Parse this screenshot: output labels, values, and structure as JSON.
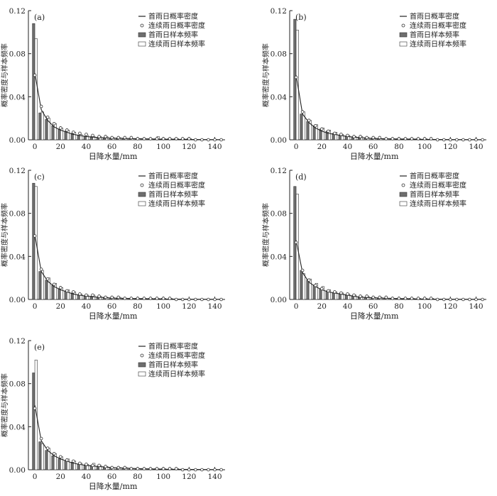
{
  "figure": {
    "shared": {
      "xlabel": "日降水量/mm",
      "ylabel": "概率密度与样本频率",
      "xticks": [
        0,
        20,
        40,
        60,
        80,
        100,
        120,
        140
      ],
      "yticks": [
        "0.00",
        "0.04",
        "0.08",
        "0.12"
      ],
      "legend": [
        "首雨日概率密度",
        "连续雨日概率密度",
        "首雨日样本频率",
        "连续雨日样本频率"
      ]
    }
  },
  "chart_data": [
    {
      "type": "bar",
      "panel": "(a)",
      "xlabel": "日降水量/mm",
      "ylabel": "概率密度与样本频率",
      "xlim": [
        -5,
        148
      ],
      "ylim": [
        0,
        0.12
      ],
      "legend_position": "top-right",
      "categories": [
        0,
        5,
        10,
        15,
        20,
        25,
        30,
        35,
        40,
        45,
        50,
        55,
        60,
        65,
        70,
        75,
        80,
        85,
        90,
        95,
        100,
        105,
        110,
        115,
        120,
        125,
        130,
        135,
        140,
        145
      ],
      "series": [
        {
          "name": "首雨日样本频率",
          "kind": "bar",
          "values": [
            0.108,
            0.025,
            0.019,
            0.013,
            0.01,
            0.008,
            0.006,
            0.004,
            0.003,
            0.003,
            0.002,
            0.002,
            0.001,
            0.001,
            0.001,
            0.001,
            0.001,
            0.001,
            0.001,
            0.001,
            0.001,
            0.001,
            0.001,
            0,
            0.001,
            0,
            0,
            0,
            0,
            0
          ]
        },
        {
          "name": "连续雨日样本频率",
          "kind": "bar",
          "values": [
            0.094,
            0.026,
            0.02,
            0.015,
            0.011,
            0.009,
            0.007,
            0.005,
            0.004,
            0.003,
            0.003,
            0.003,
            0.002,
            0.002,
            0.001,
            0.001,
            0.001,
            0.001,
            0.001,
            0.003,
            0.001,
            0.001,
            0.001,
            0.001,
            0.001,
            0,
            0,
            0,
            0,
            0
          ]
        },
        {
          "name": "首雨日概率密度",
          "kind": "line",
          "x": [
            0,
            5,
            10,
            15,
            20,
            25,
            30,
            40,
            50,
            60,
            80,
            100,
            120,
            145
          ],
          "values": [
            0.062,
            0.028,
            0.018,
            0.012,
            0.009,
            0.007,
            0.005,
            0.003,
            0.002,
            0.0015,
            0.001,
            0.0005,
            0.0003,
            0.0001
          ]
        },
        {
          "name": "连续雨日概率密度",
          "kind": "scatter",
          "x": [
            0,
            5,
            10,
            15,
            20,
            25,
            30,
            35,
            40,
            45,
            50,
            55,
            60,
            65,
            70,
            75,
            80,
            85,
            90,
            95,
            100,
            105,
            110,
            115,
            120,
            125,
            130,
            135,
            140,
            145
          ],
          "values": [
            0.06,
            0.031,
            0.021,
            0.015,
            0.011,
            0.009,
            0.007,
            0.006,
            0.005,
            0.004,
            0.003,
            0.003,
            0.002,
            0.002,
            0.002,
            0.002,
            0.001,
            0.001,
            0.001,
            0.001,
            0.001,
            0.001,
            0.001,
            0.001,
            0.001,
            0,
            0,
            0,
            0,
            0
          ]
        }
      ]
    },
    {
      "type": "bar",
      "panel": "(b)",
      "xlabel": "日降水量/mm",
      "ylabel": "概率密度与样本频率",
      "xlim": [
        -5,
        148
      ],
      "ylim": [
        0,
        0.12
      ],
      "legend_position": "top-right",
      "categories": [
        0,
        5,
        10,
        15,
        20,
        25,
        30,
        35,
        40,
        45,
        50,
        55,
        60,
        65,
        70,
        75,
        80,
        85,
        90,
        95,
        100,
        105,
        110,
        115,
        120,
        125,
        130,
        135,
        140,
        145
      ],
      "series": [
        {
          "name": "首雨日样本频率",
          "kind": "bar",
          "values": [
            0.112,
            0.024,
            0.017,
            0.013,
            0.01,
            0.008,
            0.006,
            0.004,
            0.003,
            0.002,
            0.002,
            0.002,
            0.001,
            0.001,
            0.001,
            0.001,
            0.001,
            0.001,
            0.001,
            0.001,
            0,
            0,
            0,
            0,
            0,
            0,
            0,
            0,
            0,
            0
          ]
        },
        {
          "name": "连续雨日样本频率",
          "kind": "bar",
          "values": [
            0.102,
            0.026,
            0.018,
            0.014,
            0.011,
            0.009,
            0.007,
            0.005,
            0.004,
            0.003,
            0.003,
            0.002,
            0.002,
            0.001,
            0.001,
            0.001,
            0.001,
            0.001,
            0.001,
            0.001,
            0.001,
            0,
            0,
            0,
            0,
            0,
            0,
            0,
            0,
            0
          ]
        },
        {
          "name": "首雨日概率密度",
          "kind": "line",
          "x": [
            0,
            5,
            10,
            15,
            20,
            25,
            30,
            40,
            50,
            60,
            80,
            100,
            120,
            145
          ],
          "values": [
            0.06,
            0.024,
            0.016,
            0.011,
            0.008,
            0.006,
            0.005,
            0.003,
            0.002,
            0.0012,
            0.0007,
            0.0004,
            0.0002,
            0.0001
          ]
        },
        {
          "name": "连续雨日概率密度",
          "kind": "scatter",
          "x": [
            0,
            5,
            10,
            15,
            20,
            25,
            30,
            35,
            40,
            45,
            50,
            55,
            60,
            65,
            70,
            75,
            80,
            85,
            90,
            95,
            100,
            105,
            110,
            115,
            120,
            125,
            130,
            135,
            140,
            145
          ],
          "values": [
            0.058,
            0.026,
            0.018,
            0.013,
            0.01,
            0.008,
            0.006,
            0.005,
            0.004,
            0.003,
            0.003,
            0.002,
            0.002,
            0.002,
            0.001,
            0.001,
            0.001,
            0.001,
            0.001,
            0.001,
            0.001,
            0.001,
            0,
            0,
            0,
            0,
            0,
            0,
            0,
            0
          ]
        }
      ]
    },
    {
      "type": "bar",
      "panel": "(c)",
      "xlabel": "日降水量/mm",
      "ylabel": "概率密度与样本频率",
      "xlim": [
        -5,
        148
      ],
      "ylim": [
        0,
        0.12
      ],
      "legend_position": "top-right",
      "categories": [
        0,
        5,
        10,
        15,
        20,
        25,
        30,
        35,
        40,
        45,
        50,
        55,
        60,
        65,
        70,
        75,
        80,
        85,
        90,
        95,
        100,
        105,
        110,
        115,
        120,
        125,
        130,
        135,
        140,
        145
      ],
      "series": [
        {
          "name": "首雨日样本频率",
          "kind": "bar",
          "values": [
            0.108,
            0.026,
            0.018,
            0.013,
            0.01,
            0.008,
            0.006,
            0.004,
            0.003,
            0.003,
            0.002,
            0.002,
            0.001,
            0.001,
            0.001,
            0.001,
            0.001,
            0.001,
            0.001,
            0.001,
            0.001,
            0,
            0,
            0,
            0,
            0,
            0,
            0,
            0,
            0
          ]
        },
        {
          "name": "连续雨日样本频率",
          "kind": "bar",
          "values": [
            0.105,
            0.027,
            0.02,
            0.015,
            0.011,
            0.009,
            0.007,
            0.005,
            0.004,
            0.004,
            0.003,
            0.002,
            0.002,
            0.002,
            0.001,
            0.001,
            0.001,
            0.001,
            0.001,
            0.001,
            0.001,
            0.001,
            0,
            0,
            0,
            0,
            0,
            0,
            0,
            0
          ]
        },
        {
          "name": "首雨日概率密度",
          "kind": "line",
          "x": [
            0,
            5,
            10,
            15,
            20,
            25,
            30,
            40,
            50,
            60,
            80,
            100,
            120,
            145
          ],
          "values": [
            0.06,
            0.026,
            0.017,
            0.012,
            0.009,
            0.007,
            0.005,
            0.003,
            0.002,
            0.0013,
            0.0008,
            0.0004,
            0.0002,
            0.0001
          ]
        },
        {
          "name": "连续雨日概率密度",
          "kind": "scatter",
          "x": [
            0,
            5,
            10,
            15,
            20,
            25,
            30,
            35,
            40,
            45,
            50,
            55,
            60,
            65,
            70,
            75,
            80,
            85,
            90,
            95,
            100,
            105,
            110,
            115,
            120,
            125,
            130,
            135,
            140,
            145
          ],
          "values": [
            0.059,
            0.028,
            0.019,
            0.014,
            0.011,
            0.008,
            0.007,
            0.005,
            0.004,
            0.004,
            0.003,
            0.002,
            0.002,
            0.002,
            0.001,
            0.001,
            0.001,
            0.001,
            0.001,
            0.001,
            0.001,
            0.001,
            0,
            0,
            0,
            0,
            0,
            0,
            0,
            0
          ]
        }
      ]
    },
    {
      "type": "bar",
      "panel": "(d)",
      "xlabel": "日降水量/mm",
      "ylabel": "概率密度与样本频率",
      "xlim": [
        -5,
        148
      ],
      "ylim": [
        0,
        0.12
      ],
      "legend_position": "top-right",
      "categories": [
        0,
        5,
        10,
        15,
        20,
        25,
        30,
        35,
        40,
        45,
        50,
        55,
        60,
        65,
        70,
        75,
        80,
        85,
        90,
        95,
        100,
        105,
        110,
        115,
        120,
        125,
        130,
        135,
        140,
        145
      ],
      "series": [
        {
          "name": "首雨日样本频率",
          "kind": "bar",
          "values": [
            0.105,
            0.027,
            0.018,
            0.013,
            0.01,
            0.008,
            0.006,
            0.005,
            0.004,
            0.003,
            0.002,
            0.002,
            0.001,
            0.001,
            0.001,
            0.001,
            0.001,
            0.001,
            0.001,
            0,
            0,
            0,
            0,
            0,
            0,
            0,
            0,
            0,
            0,
            0
          ]
        },
        {
          "name": "连续雨日样本频率",
          "kind": "bar",
          "values": [
            0.098,
            0.024,
            0.019,
            0.015,
            0.012,
            0.009,
            0.007,
            0.006,
            0.005,
            0.004,
            0.003,
            0.003,
            0.002,
            0.002,
            0.001,
            0.001,
            0.001,
            0.001,
            0.001,
            0.001,
            0.001,
            0.001,
            0,
            0,
            0,
            0,
            0,
            0,
            0,
            0
          ]
        },
        {
          "name": "首雨日概率密度",
          "kind": "line",
          "x": [
            0,
            5,
            10,
            15,
            20,
            25,
            30,
            40,
            50,
            60,
            80,
            100,
            120,
            145
          ],
          "values": [
            0.055,
            0.025,
            0.016,
            0.012,
            0.009,
            0.007,
            0.006,
            0.004,
            0.002,
            0.0015,
            0.0008,
            0.0004,
            0.0002,
            0.0001
          ]
        },
        {
          "name": "连续雨日概率密度",
          "kind": "scatter",
          "x": [
            0,
            5,
            10,
            15,
            20,
            25,
            30,
            35,
            40,
            45,
            50,
            55,
            60,
            65,
            70,
            75,
            80,
            85,
            90,
            95,
            100,
            105,
            110,
            115,
            120,
            125,
            130,
            135,
            140,
            145
          ],
          "values": [
            0.053,
            0.027,
            0.018,
            0.013,
            0.01,
            0.008,
            0.007,
            0.006,
            0.005,
            0.004,
            0.003,
            0.003,
            0.002,
            0.002,
            0.002,
            0.001,
            0.001,
            0.001,
            0.001,
            0.001,
            0.001,
            0.001,
            0,
            0,
            0,
            0,
            0,
            0,
            0,
            0
          ]
        }
      ]
    },
    {
      "type": "bar",
      "panel": "(e)",
      "xlabel": "日降水量/mm",
      "ylabel": "概率密度与样本频率",
      "xlim": [
        -5,
        148
      ],
      "ylim": [
        0,
        0.12
      ],
      "legend_position": "top-right",
      "categories": [
        0,
        5,
        10,
        15,
        20,
        25,
        30,
        35,
        40,
        45,
        50,
        55,
        60,
        65,
        70,
        75,
        80,
        85,
        90,
        95,
        100,
        105,
        110,
        115,
        120,
        125,
        130,
        135,
        140,
        145
      ],
      "series": [
        {
          "name": "首雨日样本频率",
          "kind": "bar",
          "values": [
            0.09,
            0.026,
            0.018,
            0.013,
            0.01,
            0.008,
            0.007,
            0.005,
            0.004,
            0.004,
            0.003,
            0.002,
            0.002,
            0.001,
            0.001,
            0.001,
            0.001,
            0.001,
            0.001,
            0.001,
            0.001,
            0,
            0,
            0,
            0,
            0,
            0,
            0,
            0,
            0
          ]
        },
        {
          "name": "连续雨日样本频率",
          "kind": "bar",
          "values": [
            0.102,
            0.024,
            0.02,
            0.015,
            0.012,
            0.01,
            0.008,
            0.006,
            0.005,
            0.006,
            0.004,
            0.003,
            0.002,
            0.002,
            0.002,
            0.001,
            0.001,
            0.001,
            0.001,
            0.001,
            0.001,
            0.001,
            0.001,
            0,
            0,
            0,
            0,
            0,
            0,
            0
          ]
        },
        {
          "name": "首雨日概率密度",
          "kind": "line",
          "x": [
            0,
            5,
            10,
            15,
            20,
            25,
            30,
            40,
            50,
            60,
            80,
            100,
            120,
            145
          ],
          "values": [
            0.06,
            0.027,
            0.018,
            0.013,
            0.01,
            0.008,
            0.006,
            0.004,
            0.003,
            0.002,
            0.001,
            0.0005,
            0.0003,
            0.0001
          ]
        },
        {
          "name": "连续雨日概率密度",
          "kind": "scatter",
          "x": [
            0,
            5,
            10,
            15,
            20,
            25,
            30,
            35,
            40,
            45,
            50,
            55,
            60,
            65,
            70,
            75,
            80,
            85,
            90,
            95,
            100,
            105,
            110,
            115,
            120,
            125,
            130,
            135,
            140,
            145
          ],
          "values": [
            0.057,
            0.029,
            0.02,
            0.015,
            0.012,
            0.009,
            0.008,
            0.006,
            0.005,
            0.004,
            0.004,
            0.003,
            0.002,
            0.002,
            0.002,
            0.001,
            0.001,
            0.001,
            0.001,
            0.001,
            0.001,
            0.001,
            0.001,
            0,
            0,
            0,
            0,
            0,
            0,
            0
          ]
        }
      ]
    }
  ]
}
